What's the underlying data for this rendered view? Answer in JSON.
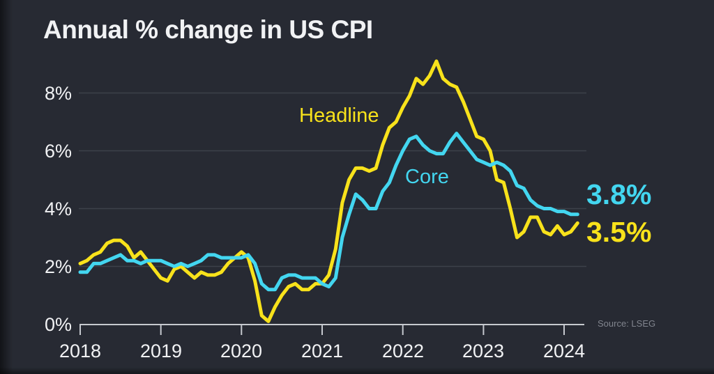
{
  "title": "Annual % change in US CPI",
  "source": "Source: LSEG",
  "colors": {
    "background": "#272a33",
    "text": "#f1f2f4",
    "grid": "#3d414a",
    "axis": "#c6c9cf",
    "headline": "#f8e21b",
    "core": "#43d6f0",
    "source_text": "#81858e"
  },
  "annotations": {
    "headline_label": "Headline",
    "core_label": "Core",
    "core_end_value": "3.8%",
    "headline_end_value": "3.5%"
  },
  "chart_data": {
    "type": "line",
    "title": "Annual % change in US CPI",
    "frequency": "monthly",
    "x_start": "2018-01",
    "x_end": "2024-03",
    "xticks": [
      "2018",
      "2019",
      "2020",
      "2021",
      "2022",
      "2023",
      "2024"
    ],
    "yticks": [
      {
        "label": "0%",
        "value": 0
      },
      {
        "label": "2%",
        "value": 2
      },
      {
        "label": "4%",
        "value": 4
      },
      {
        "label": "6%",
        "value": 6
      },
      {
        "label": "8%",
        "value": 8
      }
    ],
    "ylim": [
      0,
      9.3
    ],
    "grid": "horizontal",
    "legend_position": "inline-annotations",
    "series": [
      {
        "name": "Headline",
        "color": "#f8e21b",
        "end_label": "3.5%",
        "values": [
          2.1,
          2.2,
          2.4,
          2.5,
          2.8,
          2.9,
          2.9,
          2.7,
          2.3,
          2.5,
          2.2,
          1.9,
          1.6,
          1.5,
          1.9,
          2.0,
          1.8,
          1.6,
          1.8,
          1.7,
          1.7,
          1.8,
          2.1,
          2.3,
          2.5,
          2.3,
          1.5,
          0.3,
          0.1,
          0.6,
          1.0,
          1.3,
          1.4,
          1.2,
          1.2,
          1.4,
          1.4,
          1.7,
          2.6,
          4.2,
          5.0,
          5.4,
          5.4,
          5.3,
          5.4,
          6.2,
          6.8,
          7.0,
          7.5,
          7.9,
          8.5,
          8.3,
          8.6,
          9.1,
          8.5,
          8.3,
          8.2,
          7.7,
          7.1,
          6.5,
          6.4,
          6.0,
          5.0,
          4.9,
          4.0,
          3.0,
          3.2,
          3.7,
          3.7,
          3.2,
          3.1,
          3.4,
          3.1,
          3.2,
          3.5
        ]
      },
      {
        "name": "Core",
        "color": "#43d6f0",
        "end_label": "3.8%",
        "values": [
          1.8,
          1.8,
          2.1,
          2.1,
          2.2,
          2.3,
          2.4,
          2.2,
          2.2,
          2.1,
          2.2,
          2.2,
          2.2,
          2.1,
          2.0,
          2.1,
          2.0,
          2.1,
          2.2,
          2.4,
          2.4,
          2.3,
          2.3,
          2.3,
          2.3,
          2.4,
          2.1,
          1.4,
          1.2,
          1.2,
          1.6,
          1.7,
          1.7,
          1.6,
          1.6,
          1.6,
          1.4,
          1.3,
          1.6,
          3.0,
          3.8,
          4.5,
          4.3,
          4.0,
          4.0,
          4.6,
          4.9,
          5.5,
          6.0,
          6.4,
          6.5,
          6.2,
          6.0,
          5.9,
          5.9,
          6.3,
          6.6,
          6.3,
          6.0,
          5.7,
          5.6,
          5.5,
          5.6,
          5.5,
          5.3,
          4.8,
          4.7,
          4.3,
          4.1,
          4.0,
          4.0,
          3.9,
          3.9,
          3.8,
          3.8
        ]
      }
    ]
  }
}
